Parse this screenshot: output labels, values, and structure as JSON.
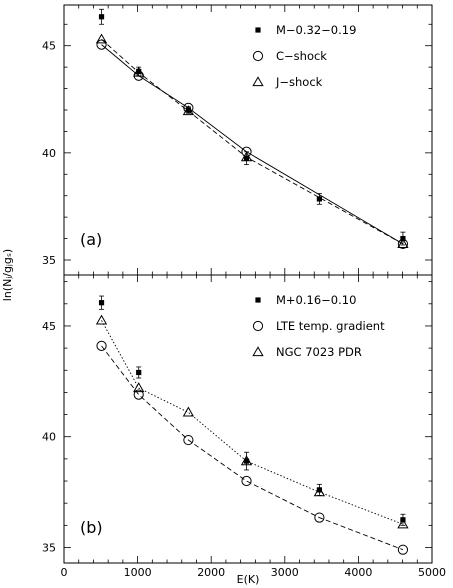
{
  "chart_data": [
    {
      "panel": "(a)",
      "type": "scatter",
      "xlim": [
        0,
        5000
      ],
      "ylim": [
        34.3,
        46.9
      ],
      "yticks": [
        35,
        40,
        45
      ],
      "ylabel": "",
      "legend_position": "top-right",
      "series": [
        {
          "name": "M−0.32−0.19",
          "marker": "filled-square",
          "line": "none",
          "error_bars": true,
          "x": [
            510,
            1015,
            1690,
            2480,
            3470,
            4605
          ],
          "y": [
            46.35,
            43.8,
            42.0,
            39.75,
            37.85,
            36.0
          ],
          "yerr": [
            0.35,
            0.2,
            0.15,
            0.3,
            0.25,
            0.3
          ]
        },
        {
          "name": "C−shock",
          "marker": "open-circle",
          "line": "solid",
          "x": [
            510,
            1015,
            1690,
            2480,
            4605
          ],
          "y": [
            45.05,
            43.6,
            42.1,
            40.05,
            35.75
          ]
        },
        {
          "name": "J−shock",
          "marker": "open-triangle",
          "line": "dashed",
          "x": [
            510,
            1015,
            1690,
            2480,
            4605
          ],
          "y": [
            45.3,
            43.75,
            41.95,
            39.8,
            35.75
          ]
        }
      ]
    },
    {
      "panel": "(b)",
      "type": "scatter",
      "xlim": [
        0,
        5000
      ],
      "ylim": [
        34.3,
        47.3
      ],
      "yticks": [
        35,
        40,
        45
      ],
      "xticks": [
        0,
        1000,
        2000,
        3000,
        4000,
        5000
      ],
      "xlabel": "E(K)",
      "ylabel": "ln(Nⱼ/gⱼgₛ)",
      "legend_position": "top-right",
      "series": [
        {
          "name": "M+0.16−0.10",
          "marker": "filled-square",
          "line": "none",
          "error_bars": true,
          "x": [
            510,
            1015,
            2480,
            3470,
            4605
          ],
          "y": [
            46.05,
            42.9,
            38.9,
            37.6,
            36.25
          ],
          "yerr": [
            0.3,
            0.25,
            0.4,
            0.25,
            0.25
          ]
        },
        {
          "name": "LTE temp. gradient",
          "marker": "open-circle",
          "line": "dashed",
          "x": [
            510,
            1015,
            1690,
            2480,
            3470,
            4605
          ],
          "y": [
            44.1,
            41.9,
            39.85,
            38.0,
            36.35,
            34.9
          ]
        },
        {
          "name": "NGC 7023 PDR",
          "marker": "open-triangle",
          "line": "dotted",
          "x": [
            510,
            1015,
            1690,
            2480,
            3470,
            4605
          ],
          "y": [
            45.25,
            42.2,
            41.1,
            38.9,
            37.5,
            36.05
          ]
        }
      ]
    }
  ]
}
